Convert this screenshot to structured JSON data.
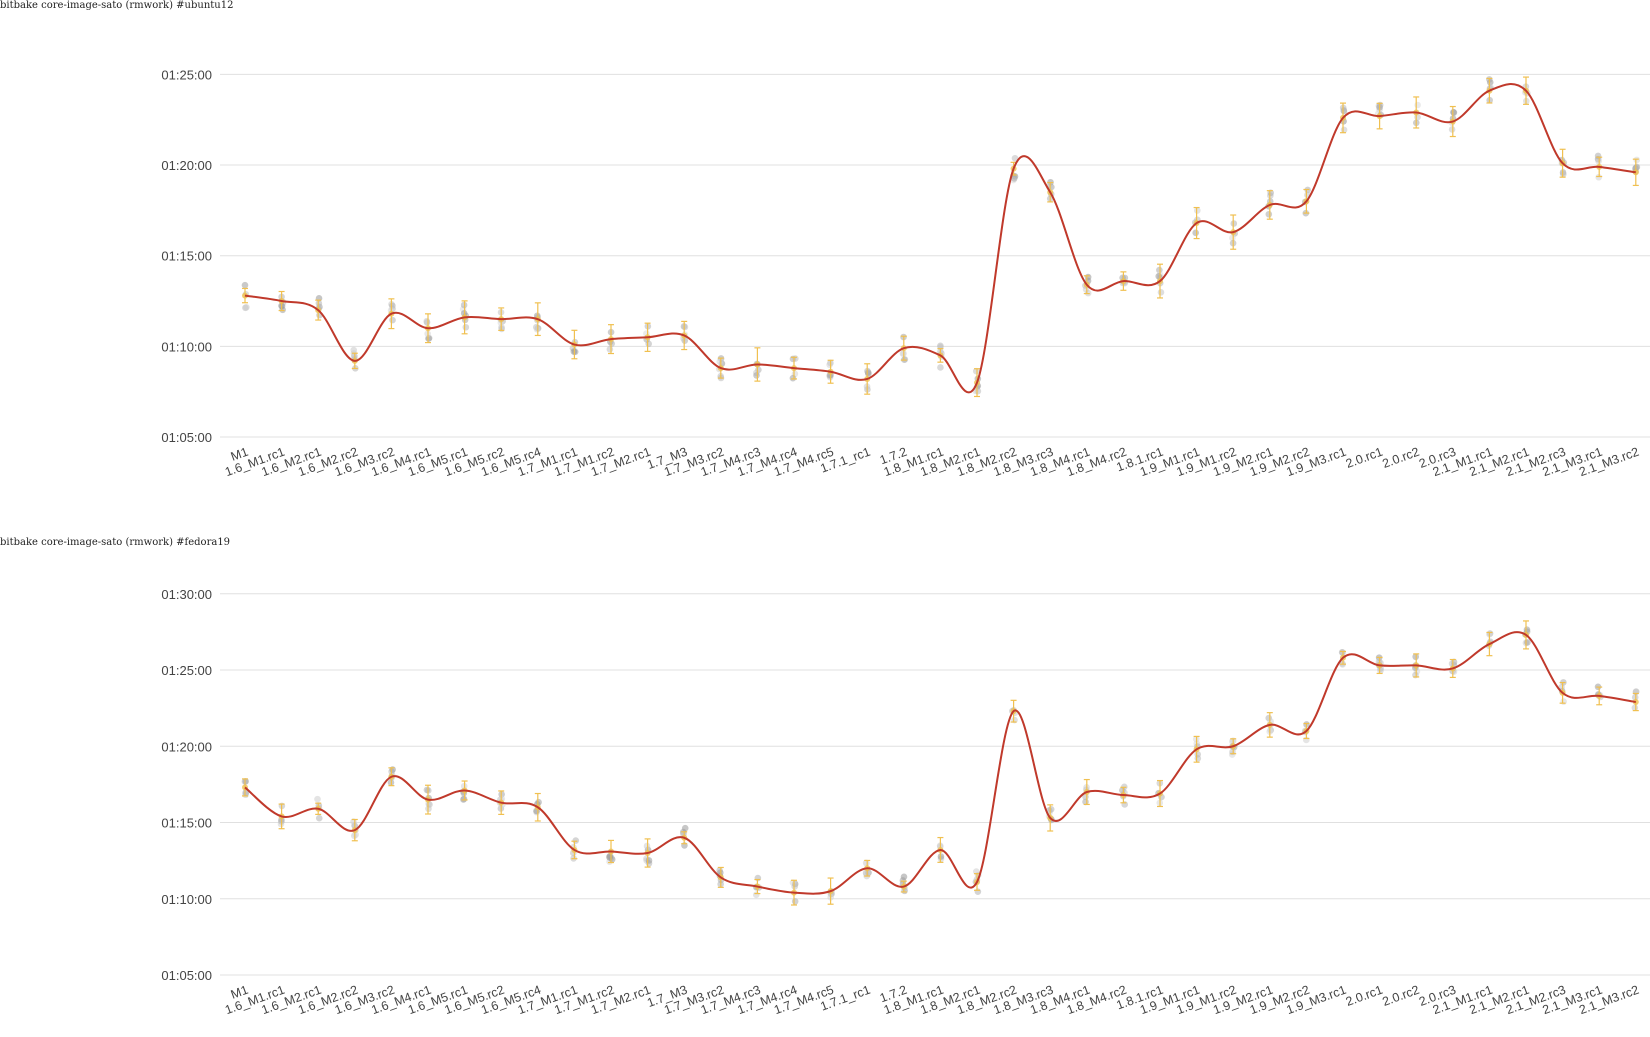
{
  "chart_data": [
    {
      "type": "line",
      "title": "bitbake core-image-sato (rmwork) #ubuntu12",
      "categories": [
        "M1",
        "1.6_M1.rc1",
        "1.6_M2.rc1",
        "1.6_M2.rc2",
        "1.6_M3.rc2",
        "1.6_M4.rc1",
        "1.6_M5.rc1",
        "1.6_M5.rc2",
        "1.6_M5.rc4",
        "1.7_M1.rc1",
        "1.7_M1.rc2",
        "1.7_M2.rc1",
        "1.7_M3",
        "1.7_M3.rc2",
        "1.7_M4.rc3",
        "1.7_M4.rc4",
        "1.7_M4.rc5",
        "1.7.1_rc1",
        "1.7.2",
        "1.8_M1.rc1",
        "1.8_M2.rc1",
        "1.8_M2.rc2",
        "1.8_M3.rc3",
        "1.8_M4.rc1",
        "1.8_M4.rc2",
        "1.8.1.rc1",
        "1.9_M1.rc1",
        "1.9_M1.rc2",
        "1.9_M2.rc1",
        "1.9_M2.rc2",
        "1.9_M3.rc1",
        "2.0.rc1",
        "2.0.rc2",
        "2.0.rc3",
        "2.1_M1.rc1",
        "2.1_M2.rc1",
        "2.1_M2.rc3",
        "2.1_M3.rc1",
        "2.1_M3.rc2"
      ],
      "yticks": [
        "01:05:00",
        "01:10:00",
        "01:15:00",
        "01:20:00",
        "01:25:00"
      ],
      "ylim": [
        "01:05:00",
        "01:28:00"
      ],
      "series": [
        {
          "values_minutes": [
            72.8,
            72.5,
            72.0,
            69.2,
            71.8,
            71.0,
            71.6,
            71.5,
            71.5,
            70.1,
            70.4,
            70.5,
            70.6,
            68.8,
            69.0,
            68.8,
            68.6,
            68.2,
            69.9,
            69.5,
            68.0,
            79.8,
            78.5,
            73.4,
            73.6,
            73.6,
            76.8,
            76.3,
            77.8,
            78.0,
            82.6,
            82.7,
            82.9,
            82.4,
            84.1,
            84.1,
            80.1,
            79.9,
            79.6
          ],
          "values": [
            "01:12:48",
            "01:12:30",
            "01:12:00",
            "01:09:12",
            "01:11:48",
            "01:11:00",
            "01:11:36",
            "01:11:30",
            "01:11:30",
            "01:10:06",
            "01:10:24",
            "01:10:30",
            "01:10:36",
            "01:08:48",
            "01:09:00",
            "01:08:48",
            "01:08:36",
            "01:08:12",
            "01:09:54",
            "01:09:30",
            "01:08:00",
            "01:19:48",
            "01:18:30",
            "01:13:24",
            "01:13:36",
            "01:13:36",
            "01:16:48",
            "01:16:18",
            "01:17:48",
            "01:18:00",
            "01:22:36",
            "01:22:42",
            "01:22:54",
            "01:22:24",
            "01:24:06",
            "01:24:06",
            "01:20:06",
            "01:19:54",
            "01:19:36"
          ]
        }
      ],
      "colors": {
        "line": "#c0392b",
        "point": "#b8b8b8",
        "errorbar": "#f0c050",
        "grid": "#e0e0e0",
        "text": "#444444"
      }
    },
    {
      "type": "line",
      "title": "bitbake core-image-sato (rmwork) #fedora19",
      "categories": [
        "M1",
        "1.6_M1.rc1",
        "1.6_M2.rc1",
        "1.6_M2.rc2",
        "1.6_M3.rc2",
        "1.6_M4.rc1",
        "1.6_M5.rc1",
        "1.6_M5.rc2",
        "1.6_M5.rc4",
        "1.7_M1.rc1",
        "1.7_M1.rc2",
        "1.7_M2.rc1",
        "1.7_M3",
        "1.7_M3.rc2",
        "1.7_M4.rc3",
        "1.7_M4.rc4",
        "1.7_M4.rc5",
        "1.7.1_rc1",
        "1.7.2",
        "1.8_M1.rc1",
        "1.8_M2.rc1",
        "1.8_M2.rc2",
        "1.8_M3.rc3",
        "1.8_M4.rc1",
        "1.8_M4.rc2",
        "1.8.1.rc1",
        "1.9_M1.rc1",
        "1.9_M1.rc2",
        "1.9_M2.rc1",
        "1.9_M2.rc2",
        "1.9_M3.rc1",
        "2.0.rc1",
        "2.0.rc2",
        "2.0.rc3",
        "2.1_M1.rc1",
        "2.1_M2.rc1",
        "2.1_M2.rc3",
        "2.1_M3.rc1",
        "2.1_M3.rc2"
      ],
      "yticks": [
        "01:05:00",
        "01:10:00",
        "01:15:00",
        "01:20:00",
        "01:25:00",
        "01:30:00"
      ],
      "ylim": [
        "01:05:00",
        "01:33:00"
      ],
      "series": [
        {
          "values_minutes": [
            77.3,
            75.4,
            75.9,
            74.5,
            78.0,
            76.5,
            77.1,
            76.3,
            76.0,
            73.2,
            73.1,
            73.0,
            74.0,
            71.4,
            70.8,
            70.4,
            70.5,
            72.0,
            70.8,
            73.2,
            71.1,
            82.3,
            75.3,
            77.0,
            76.8,
            76.9,
            79.8,
            80.0,
            81.4,
            81.0,
            85.8,
            85.3,
            85.3,
            85.1,
            86.7,
            87.3,
            83.5,
            83.3,
            82.9
          ],
          "values": [
            "01:17:18",
            "01:15:24",
            "01:15:54",
            "01:14:30",
            "01:18:00",
            "01:16:30",
            "01:17:06",
            "01:16:18",
            "01:16:00",
            "01:13:12",
            "01:13:06",
            "01:13:00",
            "01:14:00",
            "01:11:24",
            "01:10:48",
            "01:10:24",
            "01:10:30",
            "01:12:00",
            "01:10:48",
            "01:13:12",
            "01:11:06",
            "01:22:18",
            "01:15:18",
            "01:17:00",
            "01:16:48",
            "01:16:54",
            "01:19:48",
            "01:20:00",
            "01:21:24",
            "01:21:00",
            "01:25:48",
            "01:25:18",
            "01:25:18",
            "01:25:06",
            "01:26:42",
            "01:27:18",
            "01:23:30",
            "01:23:18",
            "01:22:54"
          ]
        }
      ],
      "colors": {
        "line": "#c0392b",
        "point": "#b8b8b8",
        "errorbar": "#f0c050",
        "grid": "#e0e0e0",
        "text": "#444444"
      }
    }
  ]
}
